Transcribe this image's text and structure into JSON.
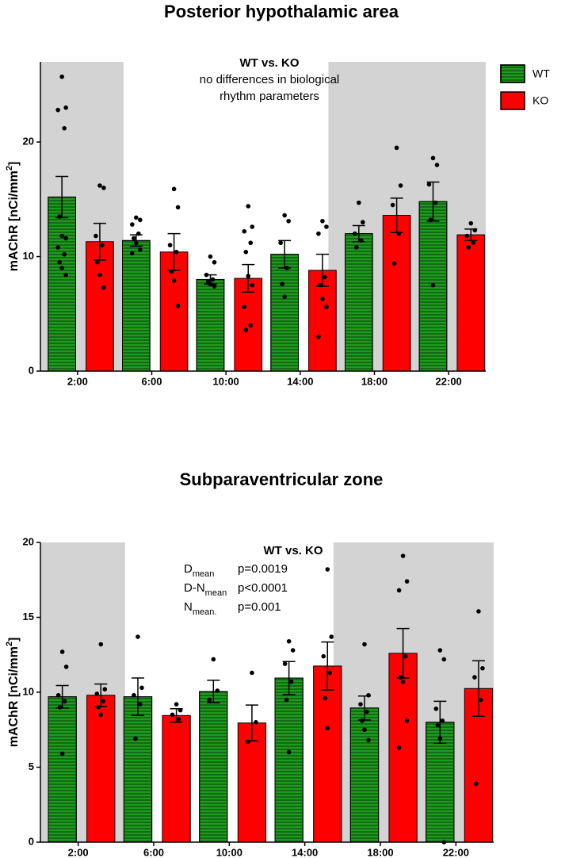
{
  "chart_data": [
    {
      "type": "bar",
      "title": "Posterior hypothalamic area",
      "annotation": {
        "title": "WT vs. KO",
        "lines": [
          "no differences in biological",
          "rhythm parameters"
        ]
      },
      "ylabel": {
        "text": "mAChR [nCi/mm",
        "sup": "2",
        "end": "]"
      },
      "categories": [
        "2:00",
        "6:00",
        "10:00",
        "14:00",
        "18:00",
        "22:00"
      ],
      "shaded": [
        true,
        false,
        false,
        false,
        true,
        true
      ],
      "legend": "right",
      "series": [
        {
          "name": "WT",
          "color": "#1e9a1e",
          "hatch": true,
          "values": [
            15.2,
            11.4,
            8.0,
            10.2,
            12.0,
            14.8
          ],
          "errors": [
            1.8,
            0.5,
            0.4,
            1.2,
            0.7,
            1.7
          ],
          "points": [
            [
              25.7,
              23.0,
              22.8,
              21.2,
              13.5,
              11.8,
              11.6,
              10.8,
              10.2,
              9.5,
              9.0,
              8.4
            ],
            [
              13.4,
              13.2,
              12.8,
              12.0,
              11.6,
              11.2,
              10.6,
              10.3
            ],
            [
              10.0,
              9.5,
              8.4,
              8.0,
              7.8,
              7.6,
              7.4
            ],
            [
              13.6,
              13.1,
              11.2,
              9.0,
              7.6,
              6.5
            ],
            [
              14.7,
              13.0,
              12.0,
              11.4,
              10.8
            ],
            [
              18.6,
              18.0,
              16.3,
              14.7,
              13.2,
              7.5
            ]
          ]
        },
        {
          "name": "KO",
          "color": "#ff0000",
          "hatch": false,
          "values": [
            11.3,
            10.4,
            8.1,
            8.8,
            13.6,
            11.9
          ],
          "errors": [
            1.6,
            1.6,
            1.2,
            1.4,
            1.5,
            0.5
          ],
          "points": [
            [
              16.2,
              16.0,
              11.8,
              11.0,
              9.5,
              8.4,
              7.3
            ],
            [
              15.9,
              14.3,
              11.0,
              10.4,
              8.7,
              7.9,
              5.7
            ],
            [
              14.4,
              12.6,
              12.2,
              11.2,
              10.4,
              8.3,
              7.5,
              5.6,
              4.0,
              3.6
            ],
            [
              13.1,
              12.6,
              12.0,
              8.2,
              7.5,
              6.3,
              5.6,
              3.0
            ],
            [
              19.5,
              16.2,
              14.5,
              12.0,
              9.4
            ],
            [
              12.9,
              12.3,
              11.8,
              11.2,
              10.8
            ]
          ]
        }
      ],
      "ylim": [
        0,
        27
      ],
      "yticks": [
        0,
        10,
        20
      ]
    },
    {
      "type": "bar",
      "title": "Subparaventricular zone",
      "annotation": {
        "title": "WT vs. KO",
        "stats": [
          {
            "label": "D",
            "sub": "mean",
            "p": "p=0.0019"
          },
          {
            "label": "D-N",
            "sub": "mean",
            "p": "p<0.0001"
          },
          {
            "label": "N",
            "sub": "mean.",
            "p": "p=0.001"
          }
        ]
      },
      "ylabel": {
        "text": "mAChR [nCi/mm",
        "sup": "2",
        "end": "]"
      },
      "categories": [
        "2:00",
        "6:00",
        "10:00",
        "14:00",
        "18:00",
        "22:00"
      ],
      "shaded": [
        true,
        false,
        false,
        false,
        true,
        true
      ],
      "series": [
        {
          "name": "WT",
          "color": "#1e9a1e",
          "hatch": true,
          "values": [
            9.7,
            9.7,
            10.05,
            10.95,
            8.95,
            8.0
          ],
          "errors": [
            0.75,
            1.25,
            0.75,
            1.1,
            0.8,
            1.4
          ],
          "points": [
            [
              12.7,
              11.7,
              9.8,
              9.4,
              9.0,
              5.9
            ],
            [
              13.7,
              10.3,
              9.8,
              9.2,
              6.9
            ],
            [
              12.2,
              10.1,
              9.5
            ],
            [
              13.4,
              12.8,
              11.9,
              10.7,
              9.5,
              6.0
            ],
            [
              13.2,
              9.8,
              9.2,
              8.7,
              8.1,
              7.5,
              6.8
            ],
            [
              12.8,
              12.2,
              8.9,
              8.1,
              7.8,
              6.9,
              0.0
            ]
          ]
        },
        {
          "name": "KO",
          "color": "#ff0000",
          "hatch": false,
          "values": [
            9.8,
            8.45,
            7.95,
            11.75,
            12.6,
            10.25
          ],
          "errors": [
            0.75,
            0.45,
            1.2,
            1.6,
            1.65,
            1.85
          ],
          "points": [
            [
              13.2,
              10.2,
              9.9,
              9.4,
              9.0,
              8.5
            ],
            [
              9.2,
              8.8,
              8.5,
              8.2
            ],
            [
              11.3,
              8.0,
              6.7
            ],
            [
              18.2,
              13.7,
              12.4,
              11.3,
              9.6,
              7.6
            ],
            [
              19.1,
              17.4,
              16.8,
              12.4,
              11.0,
              10.7,
              8.1,
              6.3
            ],
            [
              15.4,
              11.6,
              11.0,
              9.5,
              3.9
            ]
          ]
        }
      ],
      "ylim": [
        0,
        20
      ],
      "yticks": [
        0,
        5,
        10,
        15,
        20
      ]
    }
  ]
}
